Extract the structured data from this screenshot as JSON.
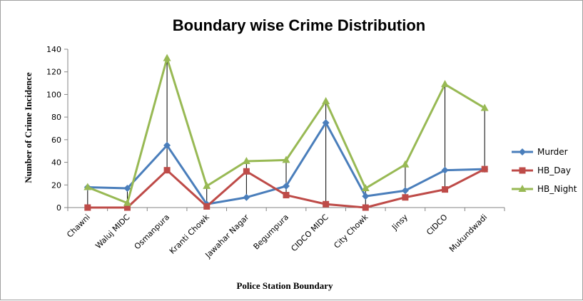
{
  "chart_data": {
    "type": "line",
    "title": "Boundary wise Crime Distribution",
    "xlabel": "Police Station Boundary",
    "ylabel": "Number of Crime Incidence",
    "ylim": [
      0,
      140
    ],
    "yticks": [
      0,
      20,
      40,
      60,
      80,
      100,
      120,
      140
    ],
    "grid": false,
    "legend_position": "right",
    "high_low_lines": true,
    "categories": [
      "Chawni",
      "Waluj MIDC",
      "Osmanpura",
      "Kranti Chowk",
      "Jawahar Nagar",
      "Begumpura",
      "CIDCO MIDC",
      "City Chowk",
      "Jinsy",
      "CIDCO",
      "Mukundwadi"
    ],
    "series": [
      {
        "name": "Murder",
        "color": "#4a7ebb",
        "marker": "diamond",
        "values": [
          18,
          17,
          55,
          3,
          9,
          19,
          75,
          10,
          15,
          33,
          34
        ]
      },
      {
        "name": "HB_Day",
        "color": "#be4b48",
        "marker": "square",
        "values": [
          0,
          0,
          33,
          1,
          32,
          11,
          3,
          0,
          9,
          16,
          34
        ]
      },
      {
        "name": "HB_Night",
        "color": "#98b954",
        "marker": "triangle",
        "values": [
          18,
          4,
          132,
          19,
          41,
          42,
          94,
          17,
          38,
          109,
          88
        ]
      }
    ]
  }
}
